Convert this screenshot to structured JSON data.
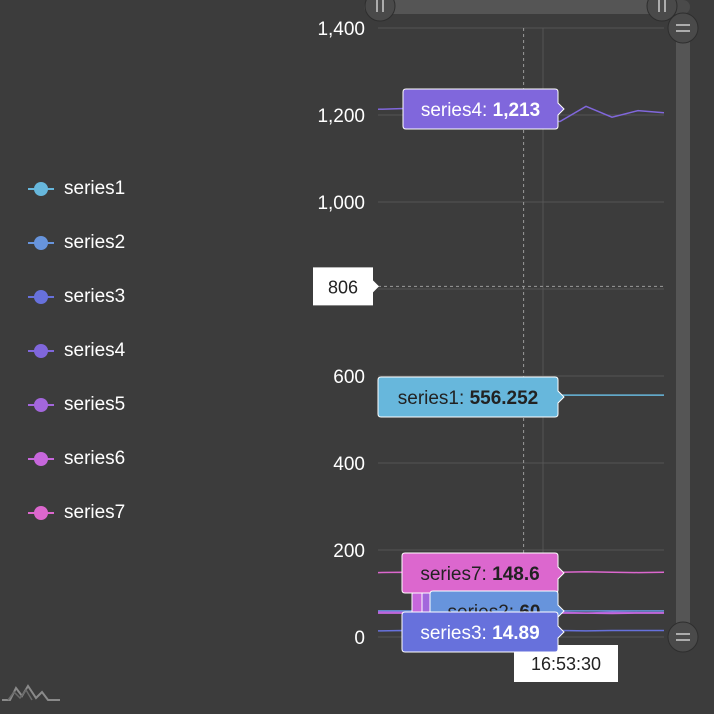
{
  "chart_data": {
    "type": "line",
    "ylim": [
      0,
      1400
    ],
    "y_ticks": [
      0,
      200,
      400,
      600,
      800,
      1000,
      1200,
      1400
    ],
    "y_tick_labels": [
      "0",
      "200",
      "400",
      "600",
      "",
      "1,000",
      "1,200",
      "1,400"
    ],
    "grid": true,
    "legend_position": "left",
    "series": [
      {
        "name": "series1",
        "color": "#67b7dc",
        "values": [
          556,
          556,
          556,
          556,
          556,
          556,
          556,
          556,
          556,
          556,
          556,
          556
        ]
      },
      {
        "name": "series2",
        "color": "#6794dc",
        "values": [
          60,
          60,
          60,
          60,
          60,
          60,
          60,
          60,
          60,
          60,
          60,
          60
        ]
      },
      {
        "name": "series3",
        "color": "#6771dc",
        "values": [
          14,
          15,
          14,
          15,
          15,
          14,
          15,
          15,
          14,
          15,
          15,
          15
        ]
      },
      {
        "name": "series4",
        "color": "#8067dc",
        "values": [
          1213,
          1215,
          1190,
          1220,
          1200,
          1213,
          1190,
          1185,
          1220,
          1195,
          1210,
          1205
        ]
      },
      {
        "name": "series5",
        "color": "#a367dc",
        "values": [
          58,
          57,
          58,
          56,
          57,
          58,
          56,
          57,
          55,
          57,
          56,
          56
        ]
      },
      {
        "name": "series6",
        "color": "#c767dc",
        "values": [
          55,
          55,
          54,
          55,
          56,
          55,
          54,
          55,
          55,
          54,
          55,
          55
        ]
      },
      {
        "name": "series7",
        "color": "#dc67ce",
        "values": [
          148,
          149,
          148,
          150,
          149,
          148.6,
          148,
          149,
          150,
          149,
          148,
          149
        ]
      }
    ],
    "cursor": {
      "time_label": "16:53:30",
      "y_value_label": "806",
      "y_value": 806,
      "x_index": 5.6
    },
    "tooltips": [
      {
        "series": "series4",
        "name_text": "series4: ",
        "value_text": "1,213",
        "value": 1213,
        "color": "#8067dc",
        "text_color": "#ffffff"
      },
      {
        "series": "series1",
        "name_text": "series1: ",
        "value_text": "556.252",
        "value": 556.252,
        "color": "#67b7dc",
        "text_color": "#222222"
      },
      {
        "series": "series7",
        "name_text": "series7: ",
        "value_text": "148.6",
        "value": 148.6,
        "color": "#dc67ce",
        "text_color": "#222222"
      },
      {
        "series": "series2",
        "name_text": "series2: ",
        "value_text": "60",
        "value": 60,
        "color": "#6794dc",
        "text_color": "#222222"
      },
      {
        "series": "series3",
        "name_text": "series3: ",
        "value_text": "14.89",
        "value": 14.89,
        "color": "#6771dc",
        "text_color": "#ffffff"
      }
    ]
  },
  "legend": {
    "items": [
      {
        "label": "series1",
        "color": "#67b7dc"
      },
      {
        "label": "series2",
        "color": "#6794dc"
      },
      {
        "label": "series3",
        "color": "#6771dc"
      },
      {
        "label": "series4",
        "color": "#8067dc"
      },
      {
        "label": "series5",
        "color": "#a367dc"
      },
      {
        "label": "series6",
        "color": "#c767dc"
      },
      {
        "label": "series7",
        "color": "#dc67ce"
      }
    ]
  },
  "logo": {
    "icon": "amcharts-logo-icon"
  }
}
